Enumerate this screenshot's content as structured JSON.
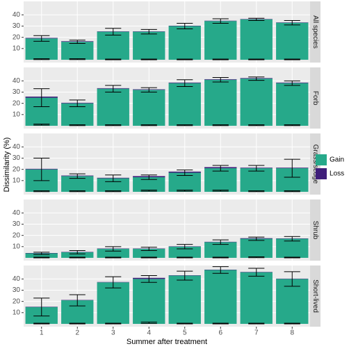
{
  "chart_data": {
    "type": "bar",
    "stacked": true,
    "x_label": "Summer after treatment",
    "y_label": "Dissimilarity (%)",
    "categories": [
      "1",
      "2",
      "3",
      "4",
      "5",
      "6",
      "7",
      "8"
    ],
    "ylim": [
      -2.5,
      52
    ],
    "yticks": [
      10,
      20,
      30,
      40
    ],
    "grid": true,
    "series": [
      {
        "name": "Gain",
        "color": "#26a98a"
      },
      {
        "name": "Loss",
        "color": "#3f1e7a"
      }
    ],
    "panels": [
      {
        "title": "All species",
        "series": [
          {
            "values": [
              19,
              16,
              25,
              25,
              30,
              34.5,
              36,
              33
            ],
            "errors": [
              2.5,
              1.5,
              3,
              2,
              2.5,
              2,
              1,
              2
            ]
          },
          {
            "values": [
              0.5,
              0.5,
              0.3,
              0.3,
              0.3,
              0.3,
              0.3,
              0.3
            ],
            "errors": [
              0.4,
              0.4,
              0.3,
              0.3,
              0.3,
              0.3,
              0.3,
              0.3
            ]
          }
        ]
      },
      {
        "title": "Forb",
        "series": [
          {
            "values": [
              25,
              20,
              33,
              32,
              38,
              41,
              42,
              38
            ],
            "errors": [
              8,
              3,
              3,
              2,
              3,
              2,
              1.5,
              2
            ]
          },
          {
            "values": [
              1,
              0.5,
              0.5,
              0.5,
              0.5,
              0.5,
              0.5,
              0.5
            ],
            "errors": [
              0.5,
              0.4,
              0.4,
              0.4,
              0.4,
              0.4,
              0.4,
              0.4
            ]
          }
        ]
      },
      {
        "title": "Grass/sedge",
        "series": [
          {
            "values": [
              20,
              14,
              12,
              13,
              17,
              21,
              21,
              21
            ],
            "errors": [
              10,
              2,
              3,
              2,
              2.5,
              2.5,
              2.5,
              8
            ]
          },
          {
            "values": [
              0.5,
              0.5,
              0.5,
              1,
              1,
              1,
              0.5,
              0.5
            ],
            "errors": [
              0.4,
              0.4,
              0.4,
              0.5,
              0.5,
              0.5,
              0.4,
              0.4
            ]
          }
        ]
      },
      {
        "title": "Shrub",
        "series": [
          {
            "values": [
              4,
              5,
              8,
              8,
              10,
              14,
              17,
              17
            ],
            "errors": [
              1,
              1.5,
              2,
              1.5,
              2,
              2,
              1.5,
              2
            ]
          },
          {
            "values": [
              0.3,
              0.3,
              0.3,
              0.3,
              0.3,
              0.3,
              0.5,
              0.3
            ],
            "errors": [
              0.3,
              0.3,
              0.3,
              0.3,
              0.3,
              0.3,
              0.4,
              0.3
            ]
          }
        ]
      },
      {
        "title": "Short-lived",
        "series": [
          {
            "values": [
              15,
              21,
              37,
              40,
              43,
              48,
              46,
              40
            ],
            "errors": [
              8,
              5,
              5,
              3,
              4,
              3,
              3.5,
              6.5
            ]
          },
          {
            "values": [
              0.3,
              0.3,
              0.3,
              1,
              0.3,
              0.3,
              0.3,
              0.3
            ],
            "errors": [
              0.3,
              0.3,
              0.3,
              0.6,
              0.3,
              0.3,
              0.3,
              0.3
            ]
          }
        ]
      }
    ]
  }
}
